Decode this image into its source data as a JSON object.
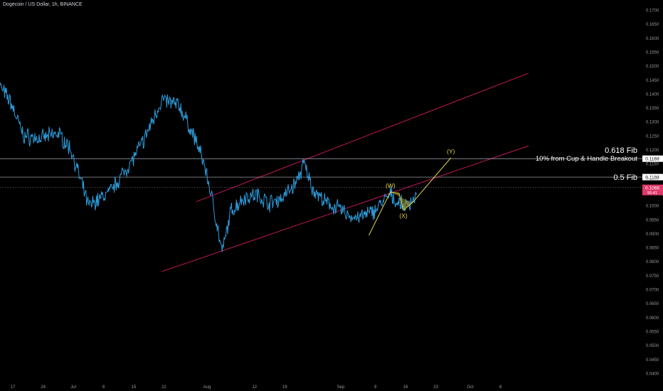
{
  "header": {
    "title": "Dogecoin / US Dollar, 1h, BINANCE"
  },
  "colors": {
    "background": "#000000",
    "price": "#2d9cdb",
    "channel": "#c2185b",
    "wave": "#e6d34a",
    "hline": "#b2b5be",
    "axis_text": "#9598a1",
    "current_price_tag": "#e0396a"
  },
  "chart_data": {
    "type": "line",
    "symbol": "DOGEUSDT",
    "x": [
      "Jun 14",
      "Jun 17",
      "Jun 20",
      "Jun 24",
      "Jun 28",
      "Jul 1",
      "Jul 5",
      "Jul 10",
      "Jul 15",
      "Jul 18",
      "Jul 22",
      "Jul 26",
      "Jul 30",
      "Aug 1",
      "Aug 3",
      "Aug 5",
      "Aug 7",
      "Aug 10",
      "Aug 13",
      "Aug 16",
      "Aug 19",
      "Aug 22",
      "Aug 24",
      "Aug 26",
      "Aug 29",
      "Sep 1",
      "Sep 4",
      "Sep 6",
      "Sep 9",
      "Sep 11",
      "Sep 13",
      "Sep 14",
      "Sep 16",
      "Sep 17",
      "Sep 18",
      "Sep 19"
    ],
    "values": [
      0.144,
      0.137,
      0.125,
      0.124,
      0.126,
      0.12,
      0.1,
      0.105,
      0.116,
      0.124,
      0.138,
      0.136,
      0.123,
      0.114,
      0.1,
      0.083,
      0.098,
      0.103,
      0.104,
      0.101,
      0.103,
      0.108,
      0.115,
      0.106,
      0.101,
      0.099,
      0.096,
      0.096,
      0.098,
      0.101,
      0.104,
      0.102,
      0.1,
      0.1005,
      0.102,
      0.104
    ],
    "x_tick_labels": [
      "17",
      "24",
      "Jul",
      "8",
      "15",
      "22",
      "Aug",
      "12",
      "19",
      "Sep",
      "9",
      "16",
      "23",
      "Oct",
      "8"
    ],
    "y_tick_labels": [
      "0.1700",
      "0.1650",
      "0.1600",
      "0.1550",
      "0.1500",
      "0.1450",
      "0.1400",
      "0.1350",
      "0.1300",
      "0.1250",
      "0.1200",
      "0.1150",
      "0.1100",
      "0.1050",
      "0.1000",
      "0.0950",
      "0.0900",
      "0.0850",
      "0.0800",
      "0.0750",
      "0.0700",
      "0.0650",
      "0.0600",
      "0.0550",
      "0.0500",
      "0.0450",
      "0.0400"
    ],
    "ylim": [
      0.036,
      0.176
    ],
    "horizontal_levels": [
      {
        "price": 0.1169,
        "label": "0.618 Fib",
        "sublabel": "10% from Cup & Handle Breakout",
        "tag": "0.1169"
      },
      {
        "price": 0.1103,
        "label": "0.5 Fib",
        "tag": "0.1103"
      }
    ],
    "current_price": {
      "price": 0.1066,
      "tag": "0.1066",
      "countdown": "55:41"
    },
    "channel": {
      "upper": {
        "from": [
          "Jul 30",
          0.1015
        ],
        "to": [
          "Oct 15",
          0.1475
        ]
      },
      "lower": {
        "from": [
          "Jul 22",
          0.0765
        ],
        "to": [
          "Oct 15",
          0.1215
        ]
      }
    },
    "wave_labels": [
      {
        "label": "(W)",
        "x": "Sep 13",
        "price": 0.105
      },
      {
        "label": "(X)",
        "x": "Sep 16",
        "price": 0.0985
      },
      {
        "label": "(Y)",
        "x": "Sep 27",
        "price": 0.1172
      }
    ],
    "wave_path": [
      [
        "Sep 8",
        0.0895
      ],
      [
        "Sep 13",
        0.105
      ],
      [
        "Sep 15",
        0.1045
      ],
      [
        "Sep 16",
        0.0985
      ],
      [
        "Sep 18",
        0.101
      ],
      [
        "Sep 27",
        0.1172
      ]
    ],
    "grid": false,
    "legend": "none"
  }
}
